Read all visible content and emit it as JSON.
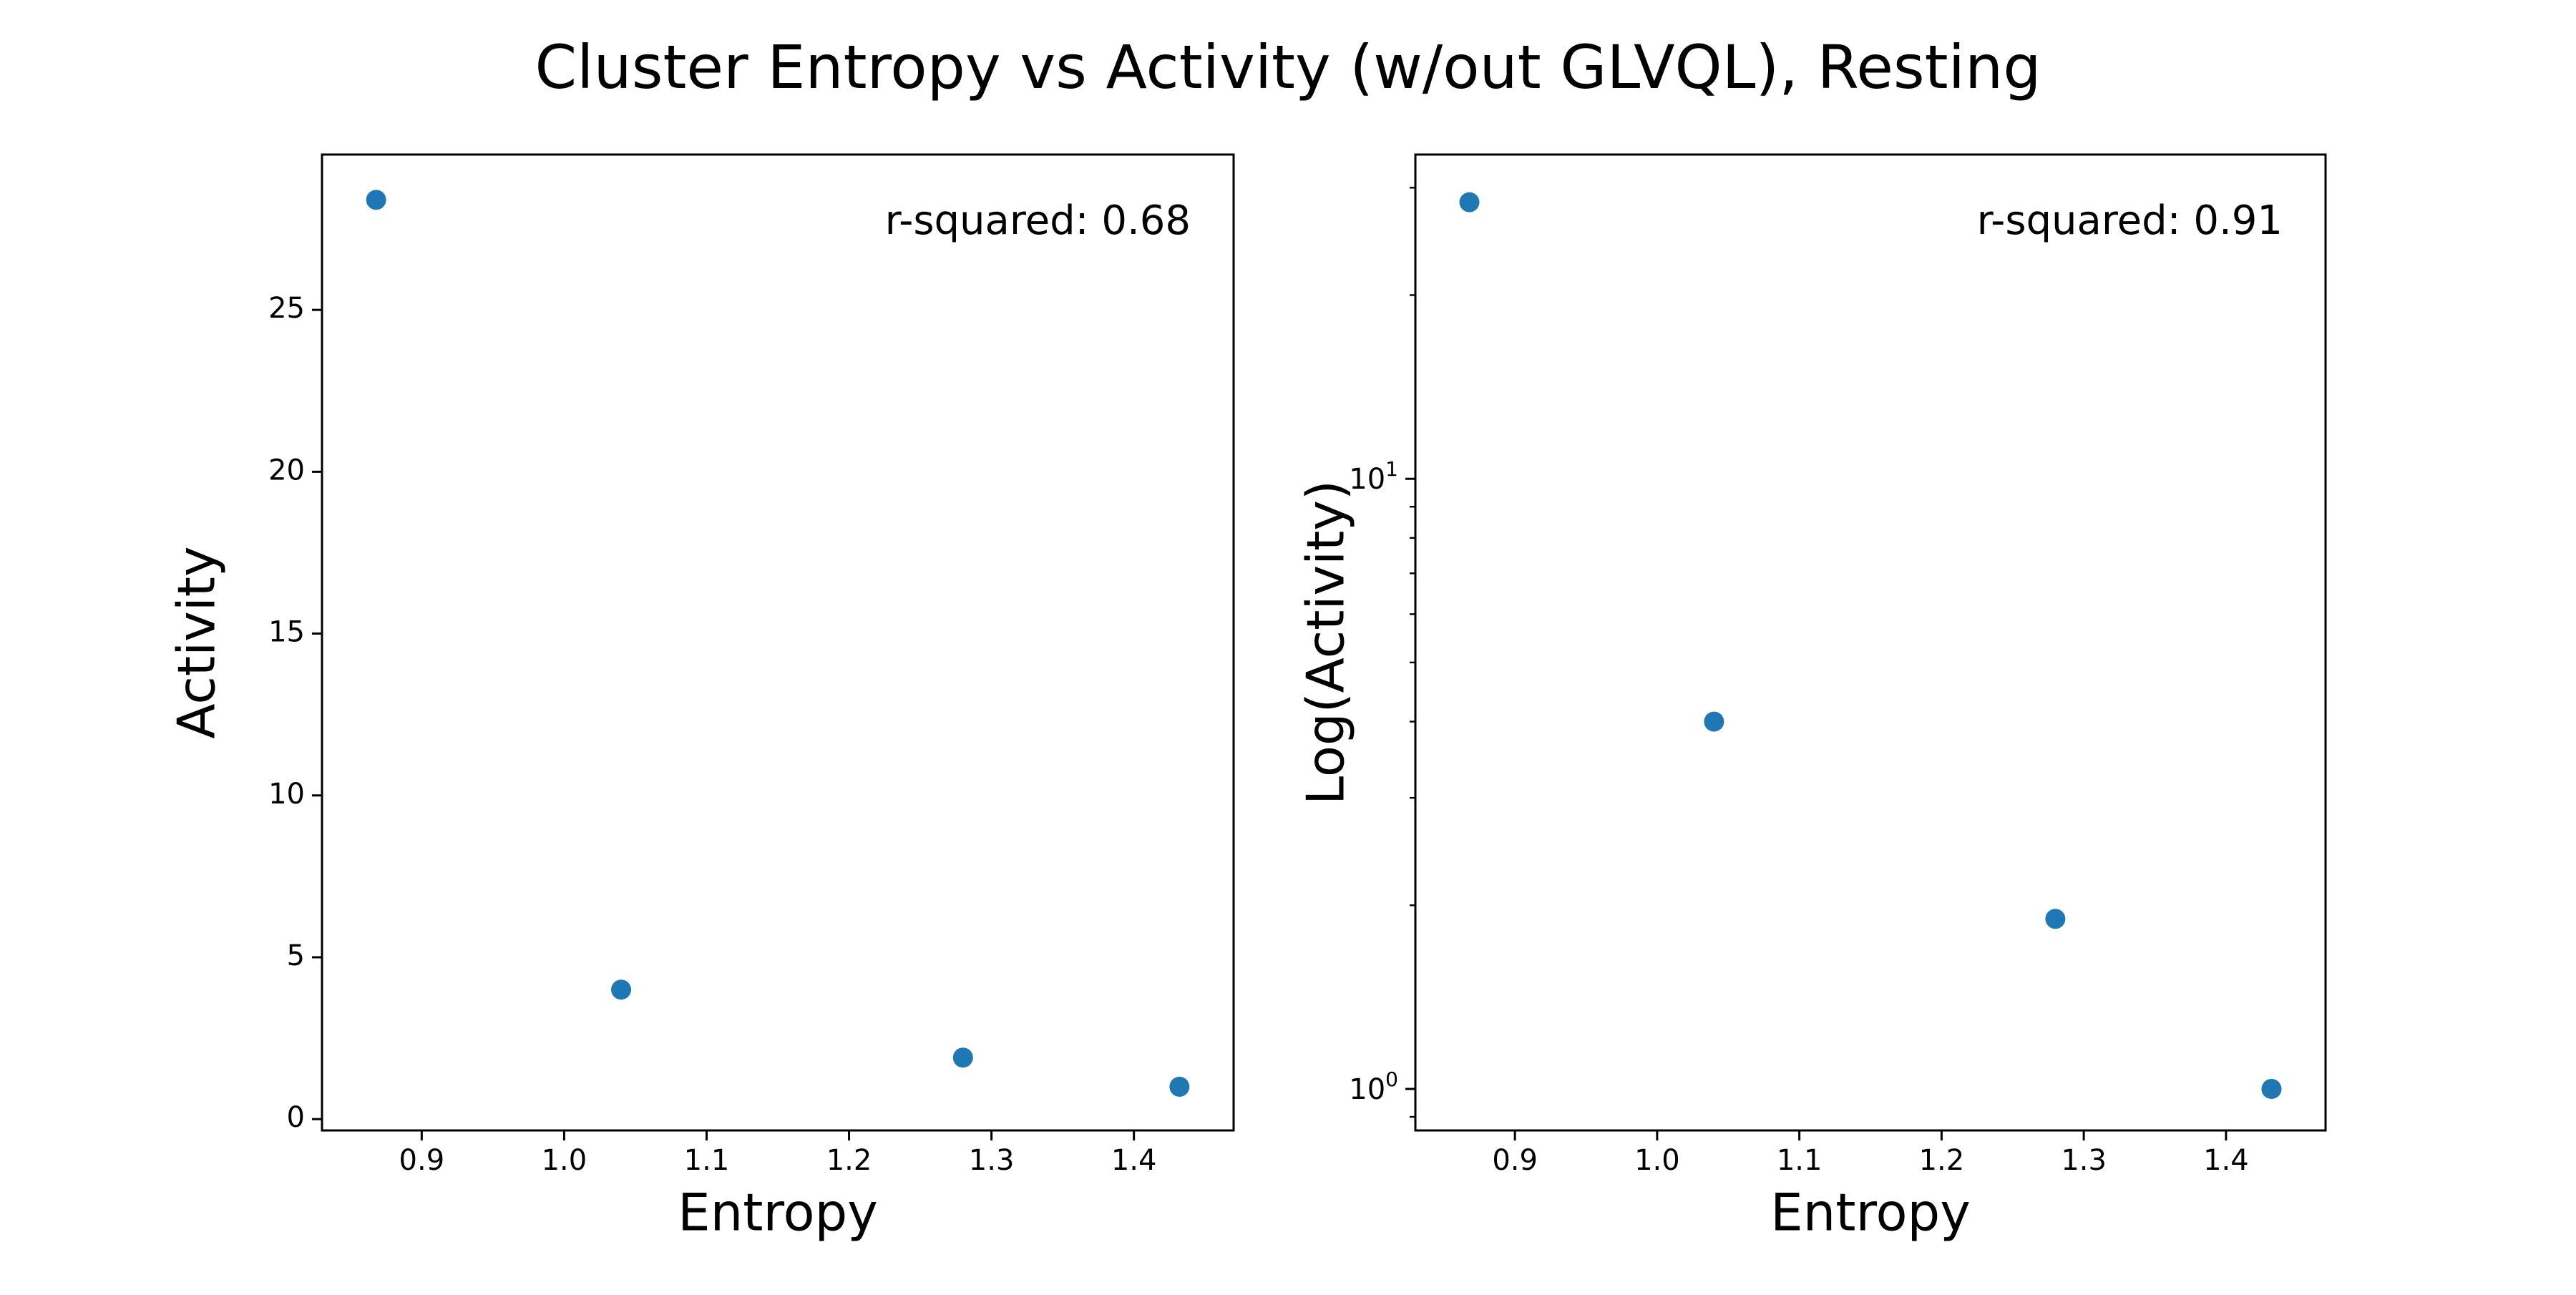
{
  "figure": {
    "title": "Cluster Entropy vs Activity (w/out GLVQL), Resting",
    "point_color": "#1f77b4"
  },
  "chart_data": [
    {
      "type": "scatter",
      "title": "",
      "xlabel": "Entropy",
      "ylabel": "Activity",
      "xlim": [
        0.83,
        1.47
      ],
      "ylim": [
        -0.35,
        29.8
      ],
      "xscale": "linear",
      "yscale": "linear",
      "xticks": [
        0.9,
        1.0,
        1.1,
        1.2,
        1.3,
        1.4
      ],
      "xtick_labels": [
        "0.9",
        "1.0",
        "1.1",
        "1.2",
        "1.3",
        "1.4"
      ],
      "yticks": [
        0,
        5,
        10,
        15,
        20,
        25
      ],
      "ytick_labels": [
        "0",
        "5",
        "10",
        "15",
        "20",
        "25"
      ],
      "annotation": "r-squared: 0.68",
      "grid": false,
      "legend": "none",
      "x": [
        0.868,
        1.04,
        1.28,
        1.432
      ],
      "y": [
        28.4,
        4.0,
        1.9,
        1.0
      ]
    },
    {
      "type": "scatter",
      "title": "",
      "xlabel": "Entropy",
      "ylabel": "Log(Activity)",
      "xlim": [
        0.83,
        1.47
      ],
      "ylim": [
        0.855,
        34.0
      ],
      "xscale": "linear",
      "yscale": "log",
      "xticks": [
        0.9,
        1.0,
        1.1,
        1.2,
        1.3,
        1.4
      ],
      "xtick_labels": [
        "0.9",
        "1.0",
        "1.1",
        "1.2",
        "1.3",
        "1.4"
      ],
      "yticks": [
        1,
        10
      ],
      "ytick_labels": [
        "10^0",
        "10^1"
      ],
      "annotation": "r-squared: 0.91",
      "grid": false,
      "legend": "none",
      "x": [
        0.868,
        1.04,
        1.28,
        1.432
      ],
      "y": [
        28.4,
        4.0,
        1.9,
        1.0
      ]
    }
  ]
}
